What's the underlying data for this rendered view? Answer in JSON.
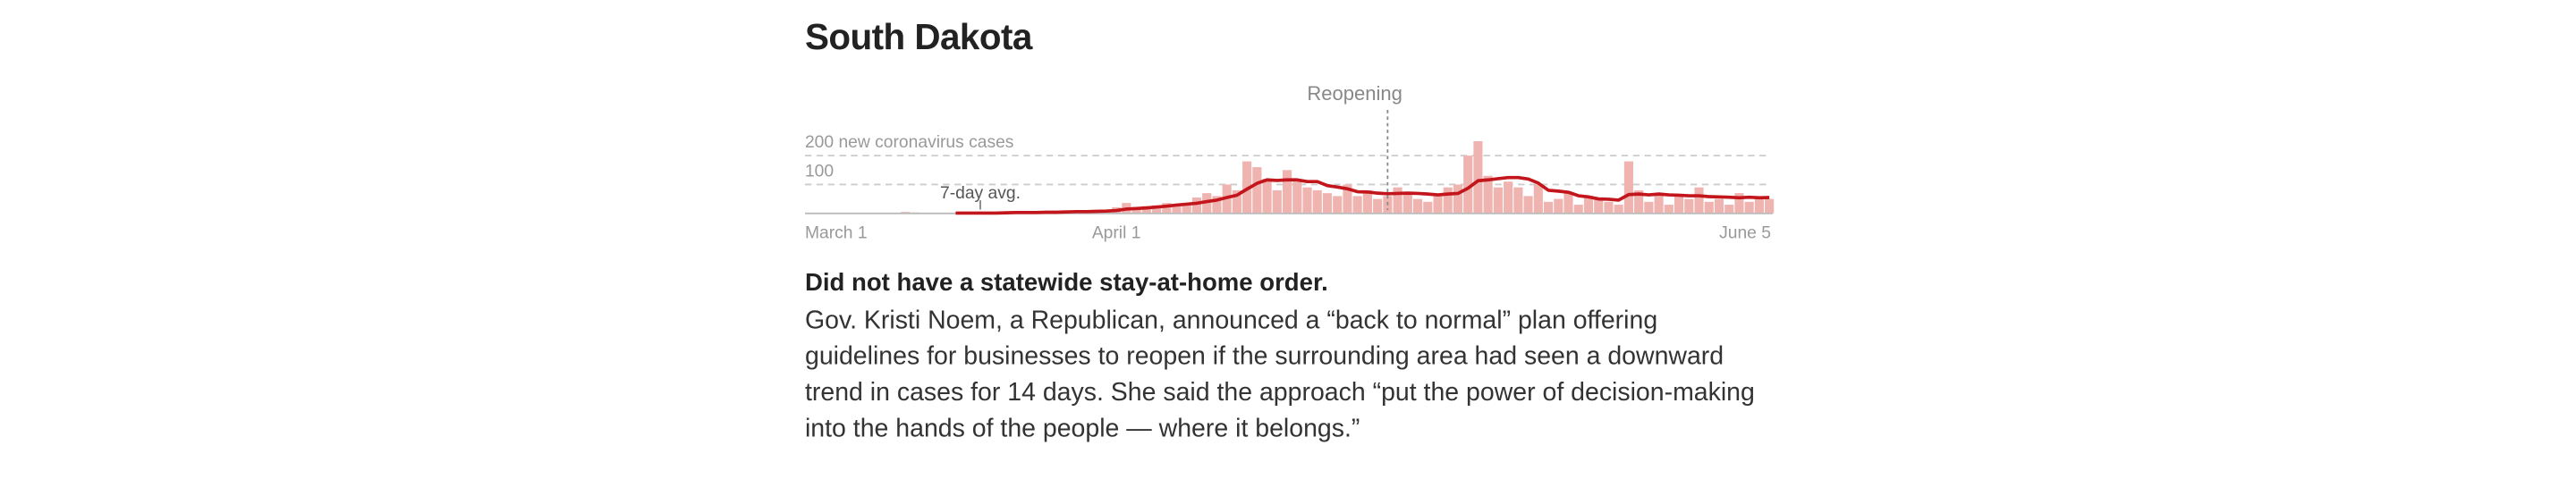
{
  "header": {
    "title": "South Dakota"
  },
  "chart_data": {
    "type": "bar",
    "categories": [
      "March 1",
      null,
      null,
      null,
      null,
      null,
      null,
      null,
      null,
      null,
      null,
      null,
      null,
      null,
      null,
      null,
      null,
      null,
      null,
      null,
      null,
      null,
      null,
      null,
      null,
      null,
      null,
      null,
      null,
      null,
      null,
      "April 1",
      null,
      null,
      null,
      null,
      null,
      null,
      null,
      null,
      null,
      null,
      null,
      null,
      null,
      null,
      null,
      null,
      null,
      null,
      null,
      null,
      null,
      null,
      null,
      null,
      null,
      null,
      null,
      null,
      null,
      null,
      null,
      null,
      null,
      null,
      null,
      null,
      null,
      null,
      null,
      null,
      null,
      null,
      null,
      null,
      null,
      null,
      null,
      null,
      null,
      null,
      null,
      null,
      null,
      null,
      null,
      null,
      null,
      null,
      null,
      null,
      null,
      null,
      null,
      null,
      "June 5"
    ],
    "values": [
      0,
      0,
      0,
      0,
      0,
      0,
      0,
      0,
      0,
      0,
      5,
      3,
      1,
      0,
      1,
      1,
      0,
      3,
      1,
      2,
      7,
      7,
      1,
      2,
      5,
      5,
      11,
      10,
      8,
      10,
      4,
      21,
      36,
      22,
      25,
      28,
      36,
      33,
      27,
      55,
      70,
      60,
      100,
      80,
      180,
      160,
      120,
      80,
      150,
      110,
      90,
      80,
      70,
      60,
      100,
      60,
      80,
      50,
      60,
      90,
      70,
      50,
      40,
      60,
      90,
      100,
      200,
      250,
      130,
      90,
      110,
      90,
      60,
      100,
      40,
      50,
      70,
      30,
      60,
      50,
      40,
      30,
      180,
      80,
      40,
      70,
      30,
      60,
      50,
      90,
      40,
      50,
      30,
      70,
      40,
      60,
      50
    ],
    "color": "#f0b4b0",
    "avg": {
      "name": "7-day avg.",
      "color": "#c3161c",
      "values": [
        null,
        null,
        null,
        null,
        null,
        null,
        null,
        null,
        null,
        null,
        null,
        null,
        null,
        null,
        null,
        1,
        1,
        1,
        1,
        1,
        2,
        3,
        3,
        3,
        4,
        4,
        5,
        6,
        6,
        7,
        8,
        10,
        15,
        17,
        19,
        22,
        25,
        29,
        32,
        35,
        41,
        46,
        55,
        63,
        84,
        104,
        116,
        114,
        116,
        116,
        110,
        110,
        96,
        91,
        85,
        75,
        74,
        70,
        68,
        69,
        70,
        69,
        67,
        64,
        67,
        69,
        87,
        113,
        116,
        120,
        124,
        124,
        119,
        105,
        80,
        77,
        73,
        61,
        57,
        50,
        49,
        46,
        65,
        67,
        64,
        67,
        64,
        63,
        61,
        61,
        58,
        57,
        56,
        54,
        56,
        54,
        55
      ]
    },
    "ylim": [
      0,
      250
    ],
    "yticks": [
      100,
      {
        "value": 200,
        "label": "200 new coronavirus cases"
      }
    ],
    "grid": true,
    "annotations": [
      {
        "text": "Reopening",
        "index": 58
      }
    ]
  },
  "text": {
    "headline": "Did not have a statewide stay-at-home order.",
    "body": "Gov. Kristi Noem, a Republican, announced a “back to normal” plan offering guidelines for businesses to reopen if the surrounding area had seen a downward trend in cases for 14 days. She said the approach “put the power of decision-making into the hands of the people — where it belongs.”"
  }
}
